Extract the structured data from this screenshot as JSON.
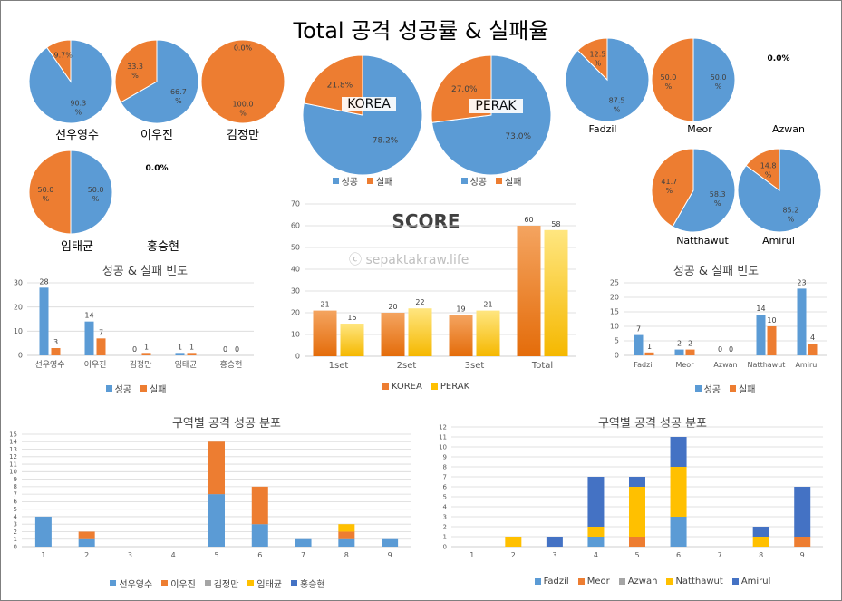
{
  "title": "Total 공격 성공률 & 실패율",
  "watermark": "ⓒ sepaktakraw.life",
  "colors": {
    "success": "#5b9bd5",
    "fail": "#ed7d31",
    "korea": "#ed7d31",
    "perak": "#ffc000",
    "gray": "#a5a5a5",
    "grid": "#d9d9d9"
  },
  "chart_data": [
    {
      "id": "pie-seon",
      "type": "pie",
      "name": "선우영수",
      "slices": [
        {
          "label": "성공",
          "value": 90.3,
          "text": "90.3\n%"
        },
        {
          "label": "실패",
          "value": 9.7,
          "text": "9.7%"
        }
      ]
    },
    {
      "id": "pie-lee",
      "type": "pie",
      "name": "이우진",
      "slices": [
        {
          "label": "성공",
          "value": 66.7,
          "text": "66.7\n%"
        },
        {
          "label": "실패",
          "value": 33.3,
          "text": "33.3\n%"
        }
      ]
    },
    {
      "id": "pie-kim",
      "type": "pie",
      "name": "김정만",
      "slices": [
        {
          "label": "성공",
          "value": 0.0,
          "text": "0.0%"
        },
        {
          "label": "실패",
          "value": 100.0,
          "text": "100.0\n%"
        }
      ]
    },
    {
      "id": "pie-lim",
      "type": "pie",
      "name": "임태균",
      "slices": [
        {
          "label": "성공",
          "value": 50.0,
          "text": "50.0\n%"
        },
        {
          "label": "실패",
          "value": 50.0,
          "text": "50.0\n%"
        }
      ]
    },
    {
      "id": "pie-hong",
      "type": "pie",
      "name": "홍승현",
      "empty_label": "0.0%"
    },
    {
      "id": "pie-korea",
      "type": "pie",
      "name": "KOREA",
      "slices": [
        {
          "label": "성공",
          "value": 78.2,
          "text": "78.2%"
        },
        {
          "label": "실패",
          "value": 21.8,
          "text": "21.8%"
        }
      ],
      "legend": [
        "성공",
        "실패"
      ]
    },
    {
      "id": "pie-perak",
      "type": "pie",
      "name": "PERAK",
      "slices": [
        {
          "label": "성공",
          "value": 73.0,
          "text": "73.0%"
        },
        {
          "label": "실패",
          "value": 27.0,
          "text": "27.0%"
        }
      ],
      "legend": [
        "성공",
        "실패"
      ]
    },
    {
      "id": "pie-fadzil",
      "type": "pie",
      "name": "Fadzil",
      "slices": [
        {
          "label": "성공",
          "value": 87.5,
          "text": "87.5\n%"
        },
        {
          "label": "실패",
          "value": 12.5,
          "text": "12.5\n%"
        }
      ]
    },
    {
      "id": "pie-meor",
      "type": "pie",
      "name": "Meor",
      "slices": [
        {
          "label": "성공",
          "value": 50.0,
          "text": "50.0\n%"
        },
        {
          "label": "실패",
          "value": 50.0,
          "text": "50.0\n%"
        }
      ]
    },
    {
      "id": "pie-azwan",
      "type": "pie",
      "name": "Azwan",
      "empty_label": "0.0%"
    },
    {
      "id": "pie-natthawut",
      "type": "pie",
      "name": "Natthawut",
      "slices": [
        {
          "label": "성공",
          "value": 58.3,
          "text": "58.3\n%"
        },
        {
          "label": "실패",
          "value": 41.7,
          "text": "41.7\n%"
        }
      ]
    },
    {
      "id": "pie-amirul",
      "type": "pie",
      "name": "Amirul",
      "slices": [
        {
          "label": "성공",
          "value": 85.2,
          "text": "85.2\n%"
        },
        {
          "label": "실패",
          "value": 14.8,
          "text": "14.8\n%"
        }
      ]
    },
    {
      "id": "score",
      "type": "bar",
      "title": "SCORE",
      "categories": [
        "1set",
        "2set",
        "3set",
        "Total"
      ],
      "series": [
        {
          "name": "KOREA",
          "values": [
            21,
            20,
            19,
            60
          ]
        },
        {
          "name": "PERAK",
          "values": [
            15,
            22,
            21,
            58
          ]
        }
      ],
      "ylim": [
        0,
        70
      ],
      "yticks": [
        0,
        10,
        20,
        30,
        40,
        50,
        60,
        70
      ]
    },
    {
      "id": "freq-left",
      "type": "bar",
      "title": "성공 & 실패 빈도",
      "categories": [
        "선우영수",
        "이우진",
        "김정만",
        "임태균",
        "홍승현"
      ],
      "series": [
        {
          "name": "성공",
          "values": [
            28,
            14,
            0,
            1,
            0
          ]
        },
        {
          "name": "실패",
          "values": [
            3,
            7,
            1,
            1,
            0
          ]
        }
      ],
      "ylim": [
        0,
        30
      ],
      "yticks": [
        0,
        10,
        20,
        30
      ]
    },
    {
      "id": "freq-right",
      "type": "bar",
      "title": "성공 & 실패 빈도",
      "categories": [
        "Fadzil",
        "Meor",
        "Azwan",
        "Natthawut",
        "Amirul"
      ],
      "series": [
        {
          "name": "성공",
          "values": [
            7,
            2,
            0,
            14,
            23
          ]
        },
        {
          "name": "실패",
          "values": [
            1,
            2,
            0,
            10,
            4
          ]
        }
      ],
      "ylim": [
        0,
        25
      ],
      "yticks": [
        0,
        5,
        10,
        15,
        20,
        25
      ]
    },
    {
      "id": "zone-left",
      "type": "bar",
      "stacked": true,
      "title": "구역별 공격 성공 분포",
      "categories": [
        "1",
        "2",
        "3",
        "4",
        "5",
        "6",
        "7",
        "8",
        "9"
      ],
      "series": [
        {
          "name": "선우영수",
          "values": [
            4,
            1,
            0,
            0,
            7,
            3,
            1,
            1,
            1
          ]
        },
        {
          "name": "이우진",
          "values": [
            0,
            1,
            0,
            0,
            7,
            5,
            0,
            1,
            0
          ]
        },
        {
          "name": "김정만",
          "values": [
            0,
            0,
            0,
            0,
            0,
            0,
            0,
            0,
            0
          ]
        },
        {
          "name": "임태균",
          "values": [
            0,
            0,
            0,
            0,
            0,
            0,
            0,
            1,
            0
          ]
        },
        {
          "name": "홍승현",
          "values": [
            0,
            0,
            0,
            0,
            0,
            0,
            0,
            0,
            0
          ]
        }
      ],
      "ylim": [
        0,
        15
      ],
      "yticks": [
        0,
        1,
        2,
        3,
        4,
        5,
        6,
        7,
        8,
        9,
        10,
        11,
        12,
        13,
        14,
        15
      ]
    },
    {
      "id": "zone-right",
      "type": "bar",
      "stacked": true,
      "title": "구역별 공격 성공 분포",
      "categories": [
        "1",
        "2",
        "3",
        "4",
        "5",
        "6",
        "7",
        "8",
        "9"
      ],
      "series": [
        {
          "name": "Fadzil",
          "values": [
            0,
            0,
            0,
            1,
            0,
            3,
            0,
            0,
            0
          ]
        },
        {
          "name": "Meor",
          "values": [
            0,
            0,
            0,
            0,
            1,
            0,
            0,
            0,
            1
          ]
        },
        {
          "name": "Azwan",
          "values": [
            0,
            0,
            0,
            0,
            0,
            0,
            0,
            0,
            0
          ]
        },
        {
          "name": "Natthawut",
          "values": [
            0,
            1,
            0,
            1,
            5,
            5,
            0,
            1,
            0
          ]
        },
        {
          "name": "Amirul",
          "values": [
            0,
            0,
            1,
            5,
            1,
            3,
            0,
            1,
            5
          ]
        }
      ],
      "ylim": [
        0,
        12
      ],
      "yticks": [
        0,
        1,
        2,
        3,
        4,
        5,
        6,
        7,
        8,
        9,
        10,
        11,
        12
      ]
    }
  ]
}
